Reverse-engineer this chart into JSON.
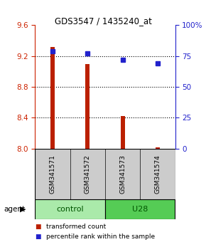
{
  "title": "GDS3547 / 1435240_at",
  "samples": [
    "GSM341571",
    "GSM341572",
    "GSM341573",
    "GSM341574"
  ],
  "bar_values": [
    9.32,
    9.1,
    8.42,
    8.02
  ],
  "bar_base": 8.0,
  "percentile_values": [
    79,
    77,
    72,
    69
  ],
  "ylim_left": [
    8.0,
    9.6
  ],
  "ylim_right": [
    0,
    100
  ],
  "yticks_left": [
    8.0,
    8.4,
    8.8,
    9.2,
    9.6
  ],
  "yticks_right": [
    0,
    25,
    50,
    75,
    100
  ],
  "ytick_labels_right": [
    "0",
    "25",
    "50",
    "75",
    "100%"
  ],
  "bar_color": "#bb2000",
  "dot_color": "#2222cc",
  "groups": [
    {
      "label": "control",
      "indices": [
        0,
        1
      ],
      "color": "#aaeaaa"
    },
    {
      "label": "U28",
      "indices": [
        2,
        3
      ],
      "color": "#55cc55"
    }
  ],
  "agent_label": "agent",
  "legend_items": [
    {
      "color": "#bb2000",
      "label": "transformed count"
    },
    {
      "color": "#2222cc",
      "label": "percentile rank within the sample"
    }
  ],
  "bar_width": 0.12,
  "sample_label_bg": "#cccccc",
  "left_color": "#cc2200",
  "right_color": "#2222cc"
}
